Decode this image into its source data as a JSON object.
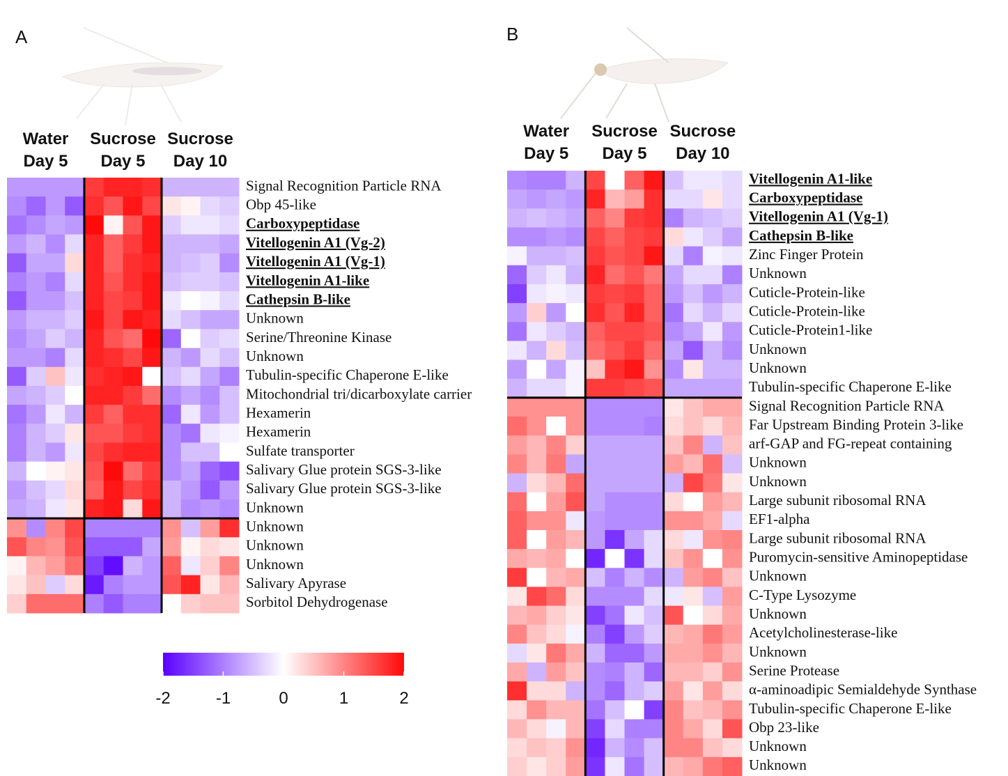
{
  "chart_data": [
    {
      "type": "heatmap",
      "panel": "A",
      "column_groups": [
        [
          "Water",
          "Day 5"
        ],
        [
          "Sucrose",
          "Day 5"
        ],
        [
          "Sucrose",
          "Day 10"
        ]
      ],
      "rows": [
        "Signal Recognition Particle RNA",
        "Obp 45-like",
        "Carboxypeptidase",
        "Vitellogenin A1 (Vg-2)",
        "Vitellogenin A1 (Vg-1)",
        "Vitellogenin A1-like",
        "Cathepsin B-like",
        "Unknown",
        "Serine/Threonine Kinase",
        "Unknown",
        "Tubulin-specific Chaperone E-like",
        "Mitochondrial tri/dicarboxylate carrier",
        "Hexamerin",
        "Hexamerin",
        "Sulfate transporter",
        "Salivary Glue protein SGS-3-like",
        "Salivary Glue protein SGS-3-like",
        "Unknown",
        "Unknown",
        "Unknown",
        "Unknown",
        "Salivary Apyrase",
        "Sorbitol Dehydrogenase"
      ],
      "emphasized": [
        2,
        3,
        4,
        5,
        6
      ],
      "row_split": 18,
      "zlim": [
        -2,
        2
      ],
      "colors": [
        "#5a00ff",
        "#ffffff",
        "#ff0a0a"
      ],
      "colorbar_ticks": [
        -2,
        -1,
        0,
        1,
        2
      ],
      "values": [
        [
          -0.8,
          -0.8,
          -0.8,
          -0.8,
          1.6,
          1.8,
          1.8,
          1.7,
          -0.6,
          -0.6,
          -0.6,
          -0.6
        ],
        [
          -0.9,
          -1.2,
          -0.8,
          -1.3,
          1.7,
          1.4,
          1.9,
          1.5,
          0.2,
          0.1,
          -0.3,
          -0.4
        ],
        [
          -1.1,
          -0.9,
          -0.7,
          -0.8,
          2.0,
          0.1,
          1.4,
          1.9,
          -0.4,
          -0.2,
          -0.2,
          -0.3
        ],
        [
          -0.8,
          -0.6,
          -0.9,
          -0.3,
          1.8,
          1.3,
          1.6,
          1.9,
          -0.6,
          -0.6,
          -0.6,
          -0.7
        ],
        [
          -1.3,
          -0.7,
          -0.7,
          0.3,
          1.8,
          1.3,
          1.7,
          1.8,
          -0.6,
          -0.5,
          -0.4,
          -0.9
        ],
        [
          -1.0,
          -0.8,
          -1.0,
          -0.3,
          1.8,
          1.4,
          1.7,
          1.9,
          -0.5,
          -0.4,
          -0.4,
          -0.5
        ],
        [
          -1.3,
          -0.8,
          -0.8,
          -0.5,
          1.8,
          1.5,
          1.6,
          1.9,
          -0.2,
          0.0,
          -0.1,
          -0.3
        ],
        [
          -0.8,
          -0.6,
          -0.6,
          -0.4,
          1.9,
          1.5,
          1.9,
          1.8,
          -0.3,
          -0.5,
          -0.7,
          -0.7
        ],
        [
          -0.9,
          -0.7,
          -0.4,
          -0.6,
          1.8,
          1.4,
          1.2,
          2.0,
          -1.2,
          0.0,
          -0.4,
          -0.3
        ],
        [
          -0.8,
          -0.8,
          -1.0,
          -0.3,
          1.8,
          1.7,
          1.5,
          1.9,
          -0.6,
          -0.8,
          -0.3,
          -0.5
        ],
        [
          -1.3,
          -0.4,
          0.5,
          -0.2,
          1.7,
          1.8,
          1.9,
          0.0,
          -0.5,
          -0.3,
          -0.7,
          -1.0
        ],
        [
          -0.7,
          -0.6,
          -0.4,
          0.0,
          1.8,
          1.8,
          1.6,
          1.2,
          -0.9,
          -0.7,
          -0.9,
          -0.5
        ],
        [
          -1.1,
          -0.8,
          -0.2,
          -0.6,
          1.6,
          1.3,
          1.7,
          1.7,
          -1.2,
          -0.2,
          -0.8,
          -0.5
        ],
        [
          -1.0,
          -0.6,
          -0.4,
          0.2,
          1.4,
          1.4,
          1.6,
          1.7,
          -0.9,
          -1.1,
          -0.2,
          -0.1
        ],
        [
          -1.0,
          -0.6,
          -0.8,
          -0.2,
          1.5,
          1.7,
          1.8,
          1.8,
          -0.9,
          -0.5,
          -0.5,
          0.0
        ],
        [
          -0.6,
          0.0,
          0.1,
          0.2,
          1.4,
          2.0,
          1.2,
          1.6,
          -0.9,
          -0.7,
          -1.2,
          -1.4
        ],
        [
          -0.8,
          -0.5,
          -0.3,
          0.3,
          1.3,
          1.9,
          1.5,
          1.7,
          -0.6,
          -0.8,
          -1.3,
          -0.8
        ],
        [
          -0.7,
          -0.6,
          -0.2,
          0.2,
          1.8,
          1.9,
          0.3,
          1.9,
          -0.6,
          -0.9,
          -0.8,
          -0.9
        ],
        [
          0.9,
          -0.9,
          1.0,
          1.5,
          -1.0,
          -1.0,
          -1.0,
          -1.0,
          0.9,
          -0.5,
          0.8,
          1.7
        ],
        [
          1.4,
          1.0,
          0.9,
          1.4,
          -1.3,
          -1.3,
          -1.3,
          -0.7,
          0.8,
          0.1,
          0.3,
          0.2
        ],
        [
          0.1,
          0.6,
          0.8,
          1.2,
          -1.5,
          -1.9,
          -0.6,
          -0.8,
          1.3,
          -0.2,
          0.4,
          1.0
        ],
        [
          0.2,
          0.5,
          -0.4,
          0.3,
          -1.8,
          -1.0,
          -0.8,
          -0.8,
          1.4,
          1.8,
          0.2,
          0.6
        ],
        [
          0.4,
          1.2,
          1.2,
          1.2,
          -1.0,
          -1.3,
          -1.0,
          -1.0,
          0.0,
          0.4,
          0.5,
          0.5
        ]
      ]
    },
    {
      "type": "heatmap",
      "panel": "B",
      "column_groups": [
        [
          "Water",
          "Day 5"
        ],
        [
          "Sucrose",
          "Day 5"
        ],
        [
          "Sucrose",
          "Day 10"
        ]
      ],
      "rows": [
        "Vitellogenin A1-like",
        "Carboxypeptidase",
        "Vitellogenin A1 (Vg-1)",
        "Cathepsin B-like",
        "Zinc Finger Protein",
        "Unknown",
        "Cuticle-Protein-like",
        "Cuticle-Protein-like",
        "Cuticle-Protein1-like",
        "Unknown",
        "Unknown",
        "Tubulin-specific Chaperone E-like",
        "Signal Recognition Particle RNA",
        "Far Upstream Binding Protein 3-like",
        "arf-GAP  and FG-repeat containing",
        "Unknown",
        "Unknown",
        "Large subunit ribosomal RNA",
        "EF1-alpha",
        "Large subunit ribosomal RNA",
        "Puromycin-sensitive Aminopeptidase",
        "Unknown",
        "C-Type Lysozyme",
        "Unknown",
        "Acetylcholinesterase-like",
        "Unknown",
        "Serine Protease",
        "α-aminoadipic Semialdehyde Synthase",
        "Tubulin-specific Chaperone E-like",
        "Obp 23-like",
        "Unknown",
        "Unknown"
      ],
      "emphasized": [
        0,
        1,
        2,
        3
      ],
      "row_split": 12,
      "zlim": [
        -2,
        2
      ],
      "colors": [
        "#5a00ff",
        "#ffffff",
        "#ff0a0a"
      ],
      "values": [
        [
          -0.9,
          -1.0,
          -1.0,
          -0.6,
          1.5,
          0.0,
          1.3,
          1.9,
          -0.5,
          -0.2,
          -0.2,
          -0.3
        ],
        [
          -0.7,
          -0.8,
          -0.7,
          -0.8,
          1.8,
          0.6,
          0.8,
          1.7,
          -0.3,
          -0.3,
          0.2,
          -0.3
        ],
        [
          -0.6,
          -0.5,
          -0.6,
          -0.7,
          1.3,
          1.0,
          1.6,
          1.7,
          -1.0,
          -0.6,
          -0.5,
          -0.4
        ],
        [
          -0.9,
          -0.9,
          -0.8,
          -0.9,
          1.5,
          1.3,
          1.5,
          1.6,
          0.3,
          -0.2,
          -0.4,
          -0.7
        ],
        [
          -0.1,
          -0.6,
          -0.6,
          -0.5,
          1.6,
          1.4,
          1.5,
          1.9,
          -0.3,
          -1.0,
          -0.1,
          -0.2
        ],
        [
          -1.2,
          -0.4,
          -0.2,
          -0.6,
          1.8,
          1.2,
          1.4,
          1.1,
          -0.7,
          -0.3,
          -0.3,
          -1.0
        ],
        [
          -1.5,
          -0.2,
          -0.1,
          -0.2,
          1.6,
          1.5,
          1.6,
          1.3,
          -0.8,
          -0.5,
          -0.8,
          -0.6
        ],
        [
          -0.8,
          0.4,
          -0.8,
          0.0,
          1.7,
          1.4,
          1.8,
          1.3,
          -1.1,
          -0.3,
          -0.6,
          -0.3
        ],
        [
          -1.1,
          -0.2,
          -0.4,
          -0.6,
          1.3,
          1.5,
          1.5,
          1.4,
          -0.9,
          -0.7,
          -0.2,
          -0.8
        ],
        [
          -0.2,
          -0.6,
          0.3,
          -0.5,
          1.2,
          1.4,
          1.6,
          1.2,
          -0.7,
          -1.3,
          -0.6,
          -0.9
        ],
        [
          -0.8,
          0.0,
          -0.7,
          -0.1,
          0.5,
          1.7,
          1.9,
          0.9,
          -0.9,
          0.2,
          -0.6,
          -0.6
        ],
        [
          -0.6,
          -0.3,
          -0.3,
          -0.1,
          1.6,
          1.6,
          1.5,
          1.4,
          -0.7,
          -0.7,
          -0.7,
          -0.7
        ],
        [
          0.9,
          0.9,
          0.9,
          0.9,
          -0.9,
          -0.9,
          -0.9,
          -0.9,
          0.2,
          0.5,
          0.7,
          0.7
        ],
        [
          1.2,
          0.9,
          0.0,
          0.9,
          -0.9,
          -0.9,
          -0.9,
          -1.0,
          0.3,
          0.5,
          0.3,
          0.6
        ],
        [
          0.8,
          0.6,
          1.0,
          0.4,
          -0.7,
          -0.7,
          -0.7,
          -0.7,
          0.5,
          1.0,
          -0.6,
          0.5
        ],
        [
          1.0,
          0.6,
          1.1,
          -0.7,
          -0.7,
          -0.7,
          -0.7,
          -0.7,
          0.8,
          0.6,
          1.2,
          -0.5
        ],
        [
          -0.6,
          0.3,
          0.6,
          1.2,
          -0.7,
          -0.7,
          -0.7,
          -0.7,
          -0.6,
          1.5,
          1.1,
          0.2
        ],
        [
          1.2,
          0.0,
          0.8,
          1.4,
          -0.7,
          -0.9,
          -0.9,
          -0.9,
          0.3,
          0.0,
          0.8,
          0.6
        ],
        [
          1.3,
          0.9,
          0.9,
          -0.2,
          -0.8,
          -0.9,
          -0.9,
          -0.9,
          0.9,
          0.9,
          0.7,
          -0.3
        ],
        [
          1.3,
          0.0,
          0.8,
          0.6,
          -0.8,
          -1.6,
          -0.7,
          -0.3,
          0.3,
          -0.2,
          0.9,
          1.0
        ],
        [
          0.7,
          0.6,
          0.7,
          0.0,
          -1.7,
          0.0,
          -1.6,
          -0.3,
          0.5,
          0.9,
          0.0,
          0.9
        ],
        [
          1.6,
          0.0,
          0.6,
          0.7,
          -0.5,
          -1.0,
          -0.6,
          -0.9,
          -0.6,
          0.8,
          1.0,
          0.5
        ],
        [
          0.2,
          1.5,
          1.2,
          0.3,
          -0.9,
          -0.9,
          -0.9,
          -0.3,
          -0.2,
          0.2,
          -0.5,
          0.8
        ],
        [
          0.6,
          0.7,
          0.4,
          0.2,
          -1.5,
          -1.1,
          -0.2,
          -0.5,
          1.4,
          0.0,
          0.3,
          0.7
        ],
        [
          1.0,
          0.5,
          0.3,
          -0.1,
          -1.0,
          -1.5,
          -0.8,
          -0.4,
          0.6,
          0.7,
          1.1,
          0.8
        ],
        [
          -0.3,
          0.2,
          1.1,
          0.7,
          -0.6,
          -1.2,
          -1.2,
          -0.8,
          0.7,
          0.7,
          0.9,
          0.6
        ],
        [
          0.7,
          -0.6,
          0.8,
          0.5,
          -0.9,
          -1.0,
          -0.6,
          -1.2,
          0.6,
          0.6,
          0.4,
          0.9
        ],
        [
          1.7,
          0.3,
          0.3,
          -0.6,
          -0.9,
          -1.2,
          -0.6,
          -0.4,
          0.8,
          0.2,
          0.8,
          0.3
        ],
        [
          0.3,
          0.9,
          0.6,
          0.6,
          -1.1,
          -0.5,
          0.0,
          -1.5,
          1.0,
          0.5,
          0.6,
          0.9
        ],
        [
          0.6,
          0.3,
          -0.1,
          0.6,
          -1.5,
          -0.3,
          -1.0,
          -1.0,
          1.0,
          0.7,
          0.3,
          1.4
        ],
        [
          0.3,
          0.5,
          0.4,
          0.9,
          -1.7,
          -0.6,
          -0.9,
          -0.5,
          1.0,
          1.0,
          0.5,
          0.3
        ],
        [
          0.4,
          0.2,
          0.4,
          0.8,
          -1.6,
          -0.2,
          -1.1,
          -0.5,
          0.6,
          0.7,
          1.1,
          1.3
        ]
      ]
    }
  ]
}
